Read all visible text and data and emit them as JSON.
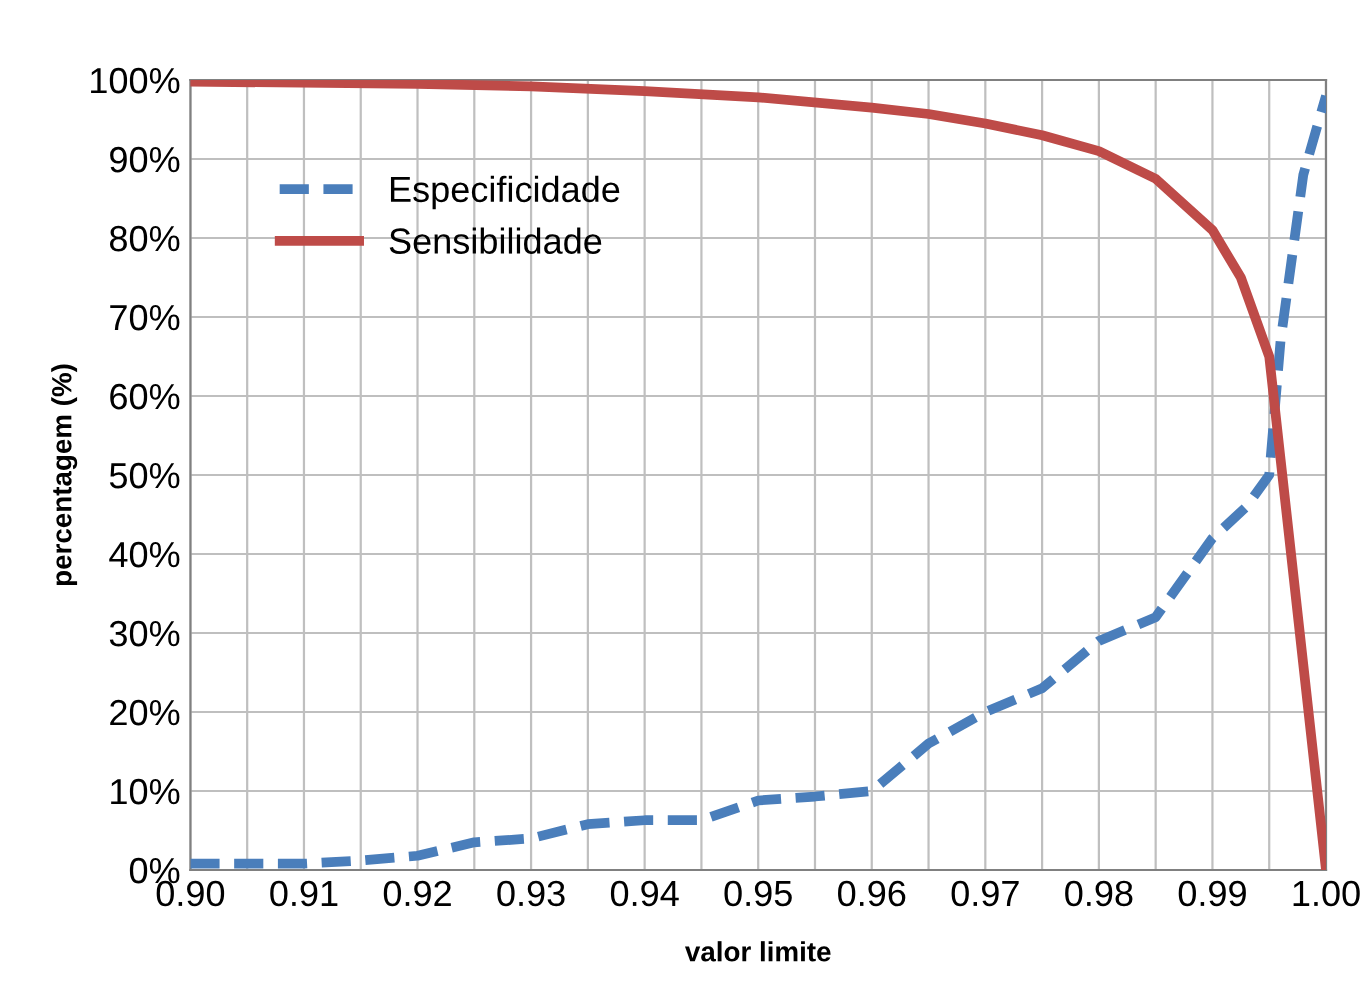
{
  "chart_data": {
    "type": "line",
    "xlabel": "valor limite",
    "ylabel": "percentagem (%)",
    "xlim": [
      0.9,
      1.0
    ],
    "xticks": [
      {
        "value": 0.9,
        "label": "0.90"
      },
      {
        "value": 0.905,
        "label": null
      },
      {
        "value": 0.91,
        "label": "0.91"
      },
      {
        "value": 0.915,
        "label": null
      },
      {
        "value": 0.92,
        "label": "0.92"
      },
      {
        "value": 0.925,
        "label": null
      },
      {
        "value": 0.93,
        "label": "0.93"
      },
      {
        "value": 0.935,
        "label": null
      },
      {
        "value": 0.94,
        "label": "0.94"
      },
      {
        "value": 0.945,
        "label": null
      },
      {
        "value": 0.95,
        "label": "0.95"
      },
      {
        "value": 0.955,
        "label": null
      },
      {
        "value": 0.96,
        "label": "0.96"
      },
      {
        "value": 0.965,
        "label": null
      },
      {
        "value": 0.97,
        "label": "0.97"
      },
      {
        "value": 0.975,
        "label": null
      },
      {
        "value": 0.98,
        "label": "0.98"
      },
      {
        "value": 0.985,
        "label": null
      },
      {
        "value": 0.99,
        "label": "0.99"
      },
      {
        "value": 0.995,
        "label": null
      },
      {
        "value": 1.0,
        "label": "1.00"
      }
    ],
    "ylim": [
      0,
      100
    ],
    "yticks": [
      {
        "value": 0,
        "label": "0%"
      },
      {
        "value": 10,
        "label": "10%"
      },
      {
        "value": 20,
        "label": "20%"
      },
      {
        "value": 30,
        "label": "30%"
      },
      {
        "value": 40,
        "label": "40%"
      },
      {
        "value": 50,
        "label": "50%"
      },
      {
        "value": 60,
        "label": "60%"
      },
      {
        "value": 70,
        "label": "70%"
      },
      {
        "value": 80,
        "label": "80%"
      },
      {
        "value": 90,
        "label": "90%"
      },
      {
        "value": 100,
        "label": "100%"
      }
    ],
    "grid": true,
    "legend": "top left",
    "series": [
      {
        "name": "Especificidade",
        "color": "#4a7ebb",
        "line_style": "dashed",
        "x": [
          0.9,
          0.905,
          0.91,
          0.915,
          0.92,
          0.925,
          0.93,
          0.935,
          0.94,
          0.945,
          0.95,
          0.955,
          0.96,
          0.965,
          0.97,
          0.975,
          0.98,
          0.985,
          0.99,
          0.993,
          0.995,
          0.996,
          0.998,
          1.0
        ],
        "values": [
          0.8,
          0.8,
          0.8,
          1.2,
          1.8,
          3.5,
          4,
          5.8,
          6.3,
          6.3,
          8.8,
          9.3,
          10,
          16,
          20,
          23,
          29,
          32,
          42,
          46,
          50,
          67,
          88,
          98
        ]
      },
      {
        "name": "Sensibilidade",
        "color": "#be4b48",
        "line_style": "solid",
        "x": [
          0.9,
          0.92,
          0.93,
          0.94,
          0.95,
          0.96,
          0.965,
          0.97,
          0.975,
          0.98,
          0.985,
          0.99,
          0.9925,
          0.995,
          0.996,
          0.998,
          1.0
        ],
        "values": [
          99.8,
          99.5,
          99.2,
          98.6,
          97.8,
          96.5,
          95.7,
          94.5,
          93,
          91,
          87.5,
          81,
          75,
          65,
          52,
          26,
          0
        ]
      }
    ]
  }
}
